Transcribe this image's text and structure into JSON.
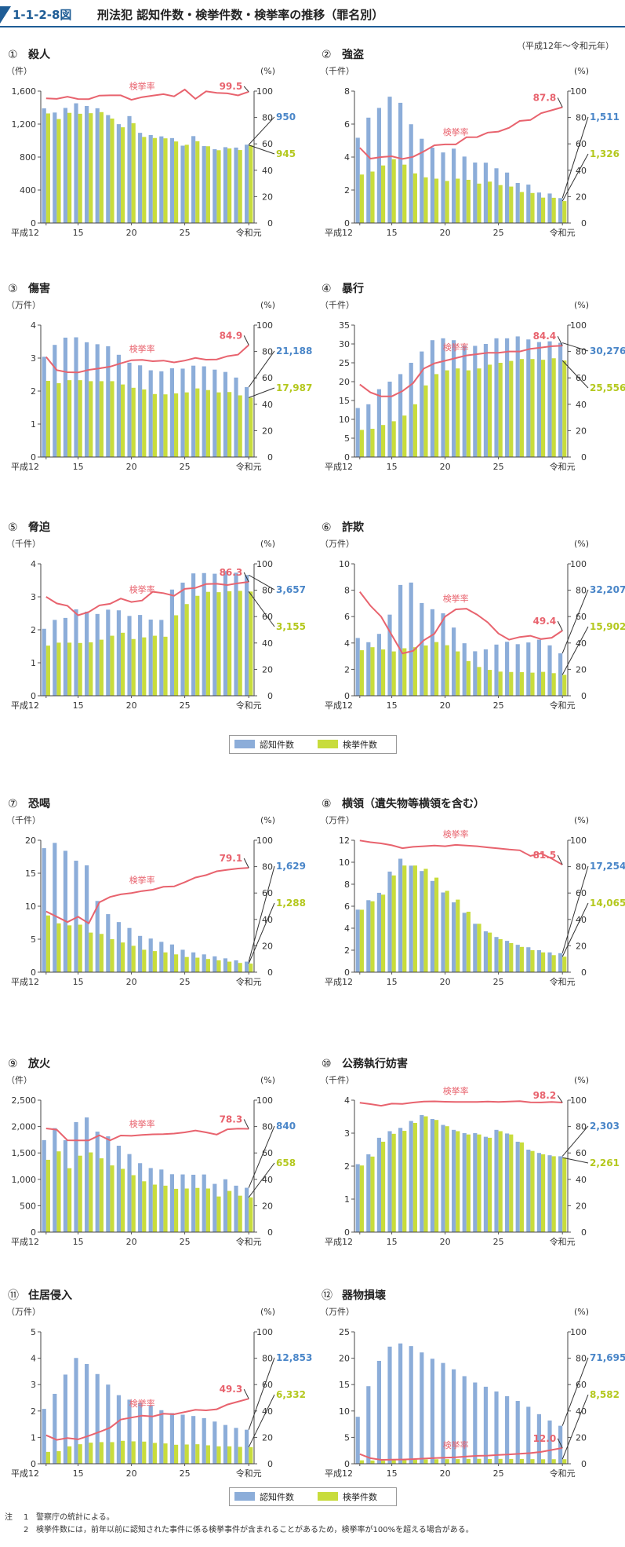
{
  "header": {
    "code": "1-1-2-8図",
    "title": "刑法犯 認知件数・検挙件数・検挙率の推移（罪名別）",
    "period": "（平成12年～令和元年）"
  },
  "legend": {
    "recognized": "認知件数",
    "cleared": "検挙件数"
  },
  "colors": {
    "recognized": "#8cadd9",
    "cleared": "#c8dc3c",
    "rate": "#e8636e",
    "recognized_label": "#4a86c8",
    "cleared_label": "#b4c81e",
    "header": "#1f5d96"
  },
  "notes": {
    "label": "注",
    "items": [
      {
        "num": "1",
        "text": "警察庁の統計による。"
      },
      {
        "num": "2",
        "text": "検挙件数には，前年以前に認知された事件に係る検挙事件が含まれることがあるため，検挙率が100%を超える場合がある。"
      }
    ]
  },
  "chart_data": [
    {
      "type": "bar",
      "panel": "①",
      "title": "殺人",
      "unit": "（件）",
      "rate_unit": "(%)",
      "rate_label": "検挙率",
      "x_ticks": [
        "平成12",
        "15",
        "20",
        "25",
        "令和元"
      ],
      "ylim": [
        0,
        1600
      ],
      "y_ticks": [
        "0",
        "400",
        "800",
        "1,200",
        "1,600"
      ],
      "rate_ticks": [
        "0",
        "20",
        "40",
        "60",
        "80",
        "100"
      ],
      "recognized": [
        1391,
        1340,
        1396,
        1452,
        1419,
        1392,
        1309,
        1199,
        1297,
        1094,
        1067,
        1051,
        1030,
        938,
        1054,
        933,
        895,
        920,
        915,
        950
      ],
      "cleared": [
        1329,
        1261,
        1336,
        1325,
        1332,
        1345,
        1267,
        1161,
        1211,
        1044,
        1031,
        1027,
        989,
        949,
        992,
        931,
        883,
        904,
        885,
        945
      ],
      "rate": [
        94.5,
        94.1,
        95.7,
        94.0,
        93.9,
        96.6,
        96.8,
        96.8,
        93.4,
        95.4,
        96.6,
        97.7,
        96.0,
        101.2,
        94.1,
        99.8,
        98.7,
        98.3,
        96.7,
        99.5
      ],
      "last_recognized_label": "950",
      "last_cleared_label": "945",
      "last_rate_label": "99.5"
    },
    {
      "type": "bar",
      "panel": "②",
      "title": "強盗",
      "unit": "（千件）",
      "rate_unit": "(%)",
      "rate_label": "検挙率",
      "x_ticks": [
        "平成12",
        "15",
        "20",
        "25",
        "令和元"
      ],
      "ylim": [
        0,
        8
      ],
      "y_ticks": [
        "0",
        "2",
        "4",
        "6",
        "8"
      ],
      "rate_ticks": [
        "0",
        "20",
        "40",
        "60",
        "80",
        "100"
      ],
      "recognized": [
        5.17,
        6.39,
        6.98,
        7.66,
        7.29,
        5.99,
        5.11,
        4.57,
        4.28,
        4.51,
        4.03,
        3.67,
        3.66,
        3.32,
        3.06,
        2.43,
        2.33,
        1.85,
        1.79,
        1.51
      ],
      "cleared": [
        2.94,
        3.12,
        3.49,
        3.87,
        3.54,
        3.01,
        2.77,
        2.69,
        2.55,
        2.69,
        2.62,
        2.39,
        2.51,
        2.3,
        2.21,
        1.88,
        1.82,
        1.54,
        1.53,
        1.33
      ],
      "rate": [
        57.0,
        48.8,
        50.0,
        50.6,
        48.6,
        50.2,
        54.2,
        58.9,
        59.6,
        59.6,
        65.0,
        65.1,
        68.6,
        69.3,
        72.2,
        77.4,
        78.1,
        83.2,
        85.5,
        87.8
      ],
      "last_recognized_label": "1,511",
      "last_cleared_label": "1,326",
      "last_rate_label": "87.8"
    },
    {
      "type": "bar",
      "panel": "③",
      "title": "傷害",
      "unit": "（万件）",
      "rate_unit": "(%)",
      "rate_label": "検挙率",
      "x_ticks": [
        "平成12",
        "15",
        "20",
        "25",
        "令和元"
      ],
      "ylim": [
        0,
        4
      ],
      "y_ticks": [
        "0",
        "1",
        "2",
        "3",
        "4"
      ],
      "rate_ticks": [
        "0",
        "20",
        "40",
        "60",
        "80",
        "100"
      ],
      "recognized": [
        3.04,
        3.4,
        3.62,
        3.63,
        3.48,
        3.42,
        3.36,
        3.1,
        2.86,
        2.78,
        2.63,
        2.6,
        2.69,
        2.68,
        2.77,
        2.75,
        2.65,
        2.58,
        2.41,
        2.12
      ],
      "cleared": [
        2.31,
        2.24,
        2.33,
        2.33,
        2.3,
        2.3,
        2.3,
        2.2,
        2.1,
        2.05,
        1.91,
        1.9,
        1.93,
        1.96,
        2.08,
        2.03,
        1.96,
        1.97,
        1.87,
        1.8
      ],
      "rate": [
        75.9,
        65.9,
        64.3,
        64.1,
        66.1,
        67.2,
        68.5,
        71.0,
        73.4,
        73.7,
        72.6,
        73.1,
        71.7,
        73.1,
        75.1,
        73.8,
        74.0,
        76.4,
        77.6,
        84.9
      ],
      "last_recognized_label": "21,188",
      "last_cleared_label": "17,987",
      "last_rate_label": "84.9"
    },
    {
      "type": "bar",
      "panel": "④",
      "title": "暴行",
      "unit": "（千件）",
      "rate_unit": "(%)",
      "rate_label": "検挙率",
      "x_ticks": [
        "平成12",
        "15",
        "20",
        "25",
        "令和元"
      ],
      "ylim": [
        0,
        35
      ],
      "y_ticks": [
        "0",
        "5",
        "10",
        "15",
        "20",
        "25",
        "30",
        "35"
      ],
      "rate_ticks": [
        "0",
        "20",
        "40",
        "60",
        "80",
        "100"
      ],
      "recognized": [
        13.0,
        14.0,
        18.0,
        20.0,
        22.0,
        25.0,
        28.0,
        31.0,
        31.5,
        31.0,
        29.5,
        29.5,
        30.0,
        31.5,
        31.5,
        32.0,
        31.2,
        30.5,
        30.7,
        30.3
      ],
      "cleared": [
        7.2,
        7.5,
        8.5,
        9.5,
        11.0,
        14.0,
        19.0,
        22.0,
        23.0,
        23.5,
        23.0,
        23.5,
        24.5,
        25.0,
        25.5,
        26.0,
        26.0,
        25.8,
        26.2,
        25.6
      ],
      "rate": [
        55.0,
        49.0,
        46.0,
        46.0,
        50.0,
        56.0,
        67.0,
        71.0,
        73.0,
        75.0,
        77.0,
        78.0,
        79.0,
        79.0,
        80.0,
        80.0,
        82.0,
        83.0,
        84.0,
        84.4
      ],
      "last_recognized_label": "30,276",
      "last_cleared_label": "25,556",
      "last_rate_label": "84.4"
    },
    {
      "type": "bar",
      "panel": "⑤",
      "title": "脅迫",
      "unit": "（千件）",
      "rate_unit": "(%)",
      "rate_label": "検挙率",
      "x_ticks": [
        "平成12",
        "15",
        "20",
        "25",
        "令和元"
      ],
      "ylim": [
        0,
        4
      ],
      "y_ticks": [
        "0",
        "1",
        "2",
        "3",
        "4"
      ],
      "rate_ticks": [
        "0",
        "20",
        "40",
        "60",
        "80",
        "100"
      ],
      "recognized": [
        2.03,
        2.3,
        2.36,
        2.62,
        2.55,
        2.48,
        2.61,
        2.59,
        2.42,
        2.45,
        2.31,
        2.3,
        3.22,
        3.43,
        3.71,
        3.72,
        3.7,
        3.78,
        3.73,
        3.66
      ],
      "cleared": [
        1.52,
        1.61,
        1.61,
        1.6,
        1.62,
        1.7,
        1.82,
        1.91,
        1.72,
        1.77,
        1.82,
        1.79,
        2.44,
        2.78,
        3.03,
        3.15,
        3.14,
        3.17,
        3.18,
        3.16
      ],
      "rate": [
        75.0,
        70.0,
        68.2,
        61.0,
        63.5,
        68.5,
        69.7,
        73.7,
        71.1,
        72.2,
        78.8,
        77.8,
        75.8,
        81.0,
        81.7,
        84.7,
        84.9,
        83.9,
        85.3,
        86.3
      ],
      "last_recognized_label": "3,657",
      "last_cleared_label": "3,155",
      "last_rate_label": "86.3"
    },
    {
      "type": "bar",
      "panel": "⑥",
      "title": "詐欺",
      "unit": "（万件）",
      "rate_unit": "(%)",
      "rate_label": "検挙率",
      "x_ticks": [
        "平成12",
        "15",
        "20",
        "25",
        "令和元"
      ],
      "ylim": [
        0,
        10
      ],
      "y_ticks": [
        "0",
        "2",
        "4",
        "6",
        "8",
        "10"
      ],
      "rate_ticks": [
        "0",
        "20",
        "40",
        "60",
        "80",
        "100"
      ],
      "recognized": [
        4.38,
        4.06,
        4.69,
        6.15,
        8.4,
        8.58,
        7.03,
        6.56,
        6.25,
        5.17,
        3.98,
        3.37,
        3.52,
        3.88,
        4.09,
        3.91,
        4.04,
        4.25,
        3.82,
        3.22
      ],
      "cleared": [
        3.45,
        3.68,
        3.51,
        3.36,
        3.6,
        3.68,
        3.81,
        4.07,
        3.83,
        3.36,
        2.63,
        2.18,
        1.96,
        1.83,
        1.8,
        1.79,
        1.75,
        1.81,
        1.71,
        1.59
      ],
      "rate": [
        78.8,
        68.2,
        60.0,
        46.0,
        32.1,
        34.0,
        42.0,
        47.0,
        60.0,
        65.5,
        66.0,
        61.5,
        55.6,
        47.2,
        42.5,
        44.5,
        45.5,
        43.0,
        44.0,
        49.4
      ],
      "last_recognized_label": "32,207",
      "last_cleared_label": "15,902",
      "last_rate_label": "49.4"
    },
    {
      "type": "bar",
      "panel": "⑦",
      "title": "恐喝",
      "unit": "（千件）",
      "rate_unit": "(%)",
      "rate_label": "検挙率",
      "x_ticks": [
        "平成12",
        "15",
        "20",
        "25",
        "令和元"
      ],
      "ylim": [
        0,
        20
      ],
      "y_ticks": [
        "0",
        "5",
        "10",
        "15",
        "20"
      ],
      "rate_ticks": [
        "0",
        "20",
        "40",
        "60",
        "80",
        "100"
      ],
      "recognized": [
        18.8,
        19.6,
        18.4,
        16.9,
        16.2,
        10.8,
        8.8,
        7.6,
        6.7,
        5.5,
        5.1,
        4.6,
        4.2,
        3.4,
        3.0,
        2.7,
        2.4,
        2.1,
        1.8,
        1.6
      ],
      "cleared": [
        8.6,
        7.4,
        7.1,
        7.2,
        6.0,
        5.8,
        5.0,
        4.5,
        4.0,
        3.4,
        3.2,
        3.0,
        2.7,
        2.3,
        2.2,
        2.0,
        1.8,
        1.6,
        1.4,
        1.3
      ],
      "rate": [
        46.0,
        42.0,
        38.0,
        42.0,
        37.0,
        53.0,
        57.0,
        59.0,
        60.0,
        61.5,
        62.5,
        64.7,
        65.0,
        68.2,
        71.7,
        73.6,
        76.5,
        77.6,
        78.6,
        79.1
      ],
      "last_recognized_label": "1,629",
      "last_cleared_label": "1,288",
      "last_rate_label": "79.1"
    },
    {
      "type": "bar",
      "panel": "⑧",
      "title": "横領（遺失物等横領を含む）",
      "unit": "（万件）",
      "rate_unit": "(%)",
      "rate_label": "検挙率",
      "x_ticks": [
        "平成12",
        "15",
        "20",
        "25",
        "令和元"
      ],
      "ylim": [
        0,
        12
      ],
      "y_ticks": [
        "0",
        "2",
        "4",
        "6",
        "8",
        "10",
        "12"
      ],
      "rate_ticks": [
        "0",
        "20",
        "40",
        "60",
        "80",
        "100"
      ],
      "recognized": [
        5.69,
        6.55,
        7.22,
        9.15,
        10.32,
        9.69,
        9.2,
        8.3,
        7.25,
        6.35,
        5.4,
        4.4,
        3.72,
        3.2,
        2.85,
        2.49,
        2.27,
        2.0,
        1.8,
        1.73
      ],
      "cleared": [
        5.68,
        6.45,
        7.05,
        8.8,
        9.7,
        9.7,
        9.4,
        8.6,
        7.4,
        6.6,
        5.5,
        4.4,
        3.6,
        3.0,
        2.65,
        2.3,
        2.0,
        1.8,
        1.55,
        1.41
      ],
      "rate": [
        99.8,
        98.5,
        97.6,
        96.2,
        94.0,
        95.0,
        95.5,
        96.0,
        95.5,
        96.5,
        96.0,
        95.5,
        94.6,
        93.8,
        93.0,
        92.4,
        88.1,
        90.0,
        86.1,
        81.5
      ],
      "last_recognized_label": "17,254",
      "last_cleared_label": "14,065",
      "last_rate_label": "81.5"
    },
    {
      "type": "bar",
      "panel": "⑨",
      "title": "放火",
      "unit": "（件）",
      "rate_unit": "(%)",
      "rate_label": "検挙率",
      "x_ticks": [
        "平成12",
        "15",
        "20",
        "25",
        "令和元"
      ],
      "ylim": [
        0,
        2500
      ],
      "y_ticks": [
        "0",
        "500",
        "1,000",
        "1,500",
        "2,000",
        "2,500"
      ],
      "rate_ticks": [
        "0",
        "20",
        "40",
        "60",
        "80",
        "100"
      ],
      "recognized": [
        1743,
        1971,
        1741,
        2085,
        2174,
        1904,
        1815,
        1637,
        1479,
        1306,
        1214,
        1186,
        1097,
        1093,
        1087,
        1092,
        914,
        1001,
        880,
        840
      ],
      "cleared": [
        1370,
        1530,
        1211,
        1448,
        1510,
        1398,
        1264,
        1199,
        1079,
        963,
        900,
        880,
        820,
        826,
        837,
        826,
        675,
        780,
        690,
        658
      ],
      "rate": [
        78.6,
        77.6,
        69.6,
        69.5,
        69.5,
        73.4,
        69.6,
        73.2,
        73.0,
        73.7,
        74.1,
        74.2,
        74.7,
        75.6,
        77.0,
        75.6,
        73.9,
        77.9,
        78.4,
        78.3
      ],
      "last_recognized_label": "840",
      "last_cleared_label": "658",
      "last_rate_label": "78.3"
    },
    {
      "type": "bar",
      "panel": "⑩",
      "title": "公務執行妨害",
      "unit": "（千件）",
      "rate_unit": "(%)",
      "rate_label": "検挙率",
      "x_ticks": [
        "平成12",
        "15",
        "20",
        "25",
        "令和元"
      ],
      "ylim": [
        0,
        4
      ],
      "y_ticks": [
        "0",
        "1",
        "2",
        "3",
        "4"
      ],
      "rate_ticks": [
        "0",
        "20",
        "40",
        "60",
        "80",
        "100"
      ],
      "recognized": [
        2.06,
        2.36,
        2.86,
        3.06,
        3.16,
        3.37,
        3.55,
        3.43,
        3.25,
        3.1,
        3.0,
        3.0,
        2.89,
        3.1,
        2.99,
        2.74,
        2.5,
        2.4,
        2.33,
        2.3
      ],
      "cleared": [
        2.02,
        2.29,
        2.74,
        2.98,
        3.07,
        3.31,
        3.51,
        3.4,
        3.21,
        3.06,
        2.96,
        2.96,
        2.86,
        3.06,
        2.96,
        2.72,
        2.46,
        2.36,
        2.3,
        2.26
      ],
      "rate": [
        98.1,
        97.0,
        95.8,
        97.4,
        97.2,
        98.2,
        98.9,
        99.1,
        98.8,
        98.7,
        98.7,
        98.7,
        99.0,
        98.7,
        99.0,
        99.3,
        98.4,
        98.3,
        98.7,
        98.2
      ],
      "last_recognized_label": "2,303",
      "last_cleared_label": "2,261",
      "last_rate_label": "98.2"
    },
    {
      "type": "bar",
      "panel": "⑪",
      "title": "住居侵入",
      "unit": "（万件）",
      "rate_unit": "(%)",
      "rate_label": "検挙率",
      "x_ticks": [
        "平成12",
        "15",
        "20",
        "25",
        "令和元"
      ],
      "ylim": [
        0,
        5
      ],
      "y_ticks": [
        "0",
        "1",
        "2",
        "3",
        "4",
        "5"
      ],
      "rate_ticks": [
        "0",
        "20",
        "40",
        "60",
        "80",
        "100"
      ],
      "recognized": [
        2.08,
        2.65,
        3.38,
        4.01,
        3.78,
        3.4,
        3.0,
        2.6,
        2.43,
        2.31,
        2.2,
        2.03,
        1.92,
        1.86,
        1.81,
        1.73,
        1.6,
        1.47,
        1.36,
        1.29
      ],
      "cleared": [
        0.45,
        0.48,
        0.66,
        0.74,
        0.8,
        0.82,
        0.82,
        0.87,
        0.85,
        0.84,
        0.79,
        0.77,
        0.72,
        0.73,
        0.74,
        0.7,
        0.66,
        0.66,
        0.64,
        0.63
      ],
      "rate": [
        21.6,
        18.1,
        19.5,
        18.5,
        21.2,
        24.1,
        27.3,
        33.5,
        35.0,
        36.4,
        35.9,
        37.9,
        37.5,
        39.2,
        40.9,
        40.5,
        41.3,
        44.9,
        47.1,
        49.3
      ],
      "last_recognized_label": "12,853",
      "last_cleared_label": "6,332",
      "last_rate_label": "49.3"
    },
    {
      "type": "bar",
      "panel": "⑫",
      "title": "器物損壊",
      "unit": "（万件）",
      "rate_unit": "(%)",
      "rate_label": "検挙率",
      "x_ticks": [
        "平成12",
        "15",
        "20",
        "25",
        "令和元"
      ],
      "ylim": [
        0,
        25
      ],
      "y_ticks": [
        "0",
        "5",
        "10",
        "15",
        "20",
        "25"
      ],
      "rate_ticks": [
        "0",
        "20",
        "40",
        "60",
        "80",
        "100"
      ],
      "recognized": [
        8.9,
        14.7,
        19.5,
        22.2,
        22.8,
        22.3,
        21.1,
        19.9,
        19.1,
        17.9,
        16.6,
        15.4,
        14.6,
        13.7,
        12.8,
        11.9,
        10.8,
        9.4,
        8.2,
        7.2
      ],
      "cleared": [
        0.65,
        0.62,
        0.58,
        0.68,
        0.73,
        0.78,
        0.83,
        0.86,
        0.87,
        0.88,
        0.92,
        0.93,
        0.9,
        0.92,
        0.91,
        0.91,
        0.87,
        0.85,
        0.86,
        0.86
      ],
      "rate": [
        7.3,
        4.2,
        3.0,
        3.1,
        3.2,
        3.5,
        3.9,
        4.3,
        4.6,
        4.9,
        5.5,
        6.0,
        6.2,
        6.7,
        7.1,
        7.6,
        8.1,
        9.0,
        10.5,
        12.0
      ],
      "last_recognized_label": "71,695",
      "last_cleared_label": "8,582",
      "last_rate_label": "12.0"
    }
  ]
}
